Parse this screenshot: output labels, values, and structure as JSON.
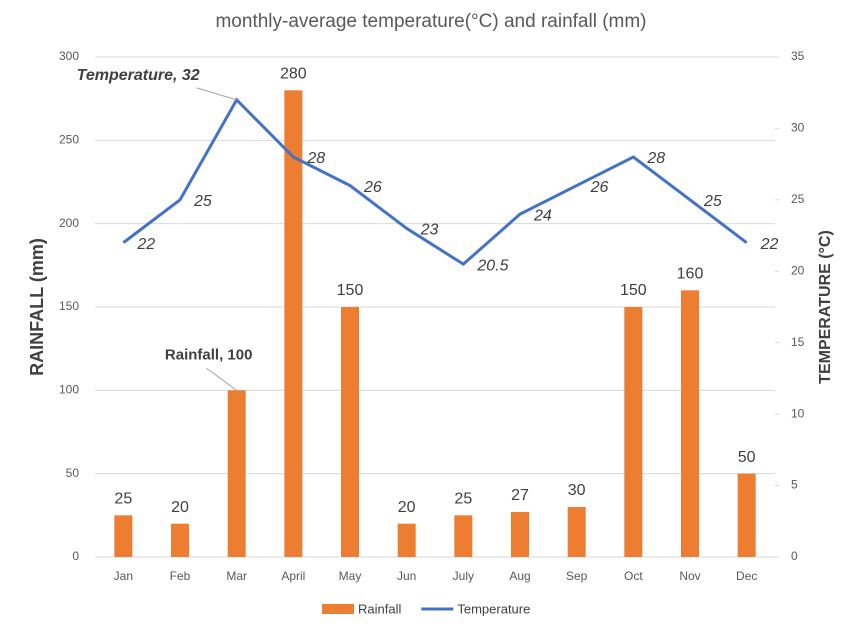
{
  "chart_data": {
    "type": "bar",
    "title": "monthly-average temperature(°C) and rainfall (mm)",
    "y_label": "RAINFALL (mm)",
    "y2_label": "TEMPERATURE (°C)",
    "categories": [
      "Jan",
      "Feb",
      "Mar",
      "April",
      "May",
      "Jun",
      "July",
      "Aug",
      "Sep",
      "Oct",
      "Nov",
      "Dec"
    ],
    "series": [
      {
        "name": "Rainfall",
        "type": "bar",
        "color": "#ed7d31",
        "values": [
          25,
          20,
          100,
          280,
          150,
          20,
          25,
          27,
          30,
          150,
          160,
          50
        ],
        "value_labels": [
          "25",
          "20",
          "Rainfall, 100",
          "280",
          "150",
          "20",
          "25",
          "27",
          "30",
          "150",
          "160",
          "50"
        ]
      },
      {
        "name": "Temperature",
        "type": "line",
        "axis": "y2",
        "color": "#4472c4",
        "values": [
          22,
          25,
          32,
          28,
          26,
          23,
          20.5,
          24,
          26,
          28,
          25,
          22
        ],
        "value_labels": [
          "22",
          "25",
          "Temperature, 32",
          "28",
          "26",
          "23",
          "20.5",
          "24",
          "26",
          "28",
          "25",
          "22"
        ]
      }
    ],
    "ylim": [
      0,
      300
    ],
    "yticks": [
      0,
      50,
      100,
      150,
      200,
      250,
      300
    ],
    "y2lim": [
      0,
      35
    ],
    "y2ticks": [
      0,
      5,
      10,
      15,
      20,
      25,
      30,
      35
    ],
    "grid": true,
    "legend": "bottom"
  }
}
